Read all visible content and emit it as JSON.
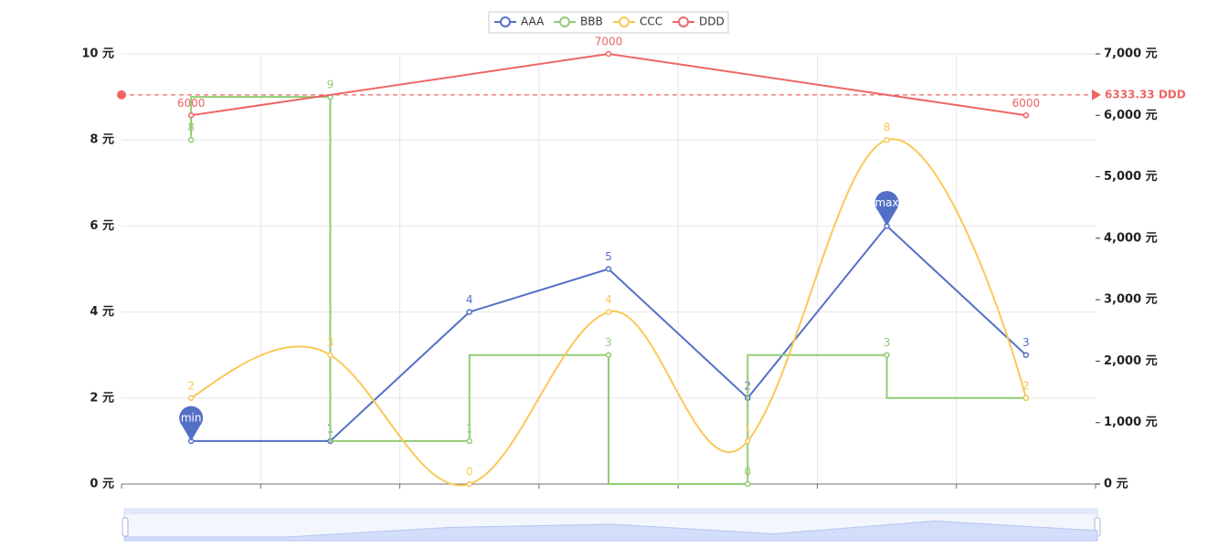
{
  "chart_data": {
    "type": "line",
    "legend": "top",
    "grid": true,
    "categories": [
      null,
      null,
      null,
      null,
      null,
      null,
      null
    ],
    "ylim": [
      0,
      10
    ],
    "yticks": [
      {
        "value": 0,
        "label": "0 元"
      },
      {
        "value": 2,
        "label": "2 元"
      },
      {
        "value": 4,
        "label": "4 元"
      },
      {
        "value": 6,
        "label": "6 元"
      },
      {
        "value": 8,
        "label": "8 元"
      },
      {
        "value": 10,
        "label": "10 元"
      }
    ],
    "y2lim": [
      0,
      7000
    ],
    "y2ticks": [
      {
        "value": 0,
        "label": "0 元"
      },
      {
        "value": 1000,
        "label": "1,000 元"
      },
      {
        "value": 2000,
        "label": "2,000 元"
      },
      {
        "value": 3000,
        "label": "3,000 元"
      },
      {
        "value": 4000,
        "label": "4,000 元"
      },
      {
        "value": 5000,
        "label": "5,000 元"
      },
      {
        "value": 6000,
        "label": "6,000 元"
      },
      {
        "value": 7000,
        "label": "7,000 元"
      }
    ],
    "series": [
      {
        "name": "AAA",
        "color": "#5470c6",
        "values": [
          1,
          1,
          4,
          5,
          2,
          6,
          3
        ],
        "mark_points": [
          "min",
          "max"
        ]
      },
      {
        "name": "BBB",
        "color": "#91cc75",
        "values": [
          8,
          9,
          1,
          3,
          0,
          3,
          2
        ],
        "step": "start"
      },
      {
        "name": "CCC",
        "color": "#fac858",
        "values": [
          2,
          3,
          0,
          4,
          1,
          8,
          2
        ],
        "smooth": true
      },
      {
        "name": "DDD",
        "color": "#ee6666",
        "axis": "y2",
        "values": [
          6000,
          null,
          null,
          7000,
          null,
          null,
          6000
        ],
        "connect_nulls": true,
        "average": 6333.33,
        "average_label": "6333.33 DDD"
      }
    ]
  }
}
